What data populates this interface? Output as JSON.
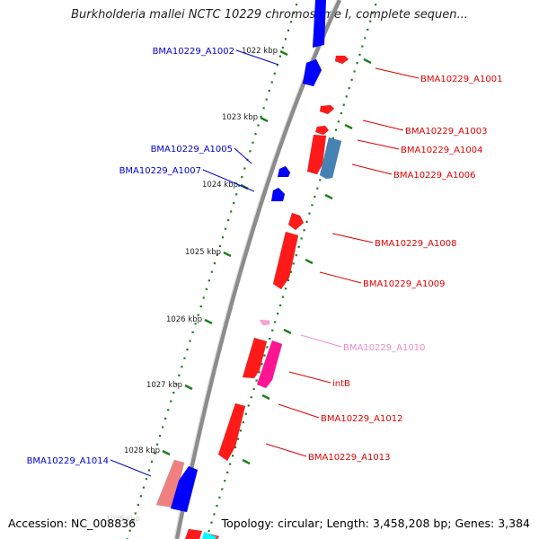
{
  "title": "Burkholderia mallei NCTC 10229 chromosome I, complete sequen...",
  "footer": {
    "accession": "Accession: NC_008836",
    "topology": "Topology: circular;",
    "length": "Length: 3,458,208 bp;",
    "genes": "Genes: 3,384"
  },
  "ruler": {
    "ticks": [
      {
        "label": "1022 kbp"
      },
      {
        "label": "1023 kbp"
      },
      {
        "label": "1024 kbp"
      },
      {
        "label": "1025 kbp"
      },
      {
        "label": "1026 kbp"
      },
      {
        "label": "1027 kbp"
      },
      {
        "label": "1028 kbp"
      }
    ]
  },
  "colors": {
    "backbone": "#8c8c8c",
    "tick": "#1e7f1e",
    "forward_label": "#0000cc",
    "reverse_label": "#e00000",
    "pink_label": "#f08cc8"
  },
  "genes": [
    {
      "name": "BMA10229_A1001",
      "strand": "reverse",
      "color": "#ff1a1a"
    },
    {
      "name": "BMA10229_A1002",
      "strand": "forward",
      "color": "#0000ff"
    },
    {
      "name": "BMA10229_A1003",
      "strand": "reverse",
      "color": "#ff1a1a"
    },
    {
      "name": "BMA10229_A1004",
      "strand": "reverse",
      "color": "#ff1a1a"
    },
    {
      "name": "BMA10229_A1005",
      "strand": "forward",
      "color": "#0000ff"
    },
    {
      "name": "BMA10229_A1006",
      "strand": "reverse",
      "color": "#4682b4"
    },
    {
      "name": "BMA10229_A1007",
      "strand": "forward",
      "color": "#0000ff"
    },
    {
      "name": "BMA10229_A1008",
      "strand": "reverse",
      "color": "#ff1a1a"
    },
    {
      "name": "BMA10229_A1009",
      "strand": "reverse",
      "color": "#ff1a1a"
    },
    {
      "name": "BMA10229_A1010",
      "strand": "reverse",
      "color": "#ff9fd4"
    },
    {
      "name": "intB",
      "strand": "reverse",
      "color": "#ff1493"
    },
    {
      "name": "BMA10229_A1012",
      "strand": "reverse",
      "color": "#ff1a1a"
    },
    {
      "name": "BMA10229_A1013",
      "strand": "reverse",
      "color": "#ff1a1a"
    },
    {
      "name": "BMA10229_A1014",
      "strand": "forward",
      "color": "#f08080"
    }
  ]
}
